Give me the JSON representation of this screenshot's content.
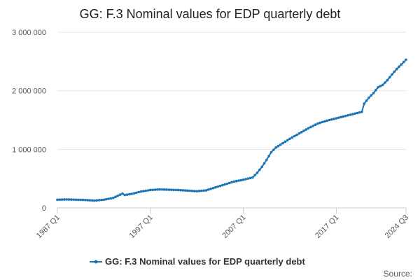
{
  "chart_data": {
    "type": "line",
    "title": "GG: F.3 Nominal values for EDP quarterly debt",
    "xlabel": "",
    "ylabel": "",
    "x_tick_labels": [
      "1987 Q1",
      "1997 Q1",
      "2007 Q1",
      "2017 Q1",
      "2024 Q3"
    ],
    "y_tick_labels": [
      "0",
      "1 000 000",
      "2 000 000",
      "3 000 000"
    ],
    "ylim": [
      0,
      3000000
    ],
    "xlim": [
      "1987 Q1",
      "2024 Q3"
    ],
    "grid": "horizontal",
    "legend_position": "bottom",
    "source_label": "Source:",
    "colors": {
      "series": "#1b74b5",
      "grid": "#e6e6e6",
      "axis": "#cccccc",
      "text": "#222222"
    },
    "series": [
      {
        "name": "GG: F.3 Nominal values for EDP quarterly debt",
        "points": [
          [
            "1987 Q1",
            140000
          ],
          [
            "1988 Q1",
            145000
          ],
          [
            "1989 Q1",
            140000
          ],
          [
            "1990 Q1",
            135000
          ],
          [
            "1991 Q1",
            125000
          ],
          [
            "1992 Q1",
            140000
          ],
          [
            "1993 Q1",
            170000
          ],
          [
            "1994 Q1",
            245000
          ],
          [
            "1994 Q2",
            220000
          ],
          [
            "1995 Q1",
            240000
          ],
          [
            "1996 Q1",
            280000
          ],
          [
            "1997 Q1",
            305000
          ],
          [
            "1998 Q1",
            315000
          ],
          [
            "1999 Q1",
            310000
          ],
          [
            "2000 Q1",
            305000
          ],
          [
            "2001 Q1",
            295000
          ],
          [
            "2002 Q1",
            285000
          ],
          [
            "2003 Q1",
            300000
          ],
          [
            "2004 Q1",
            350000
          ],
          [
            "2005 Q1",
            400000
          ],
          [
            "2006 Q1",
            450000
          ],
          [
            "2007 Q1",
            480000
          ],
          [
            "2008 Q1",
            520000
          ],
          [
            "2008 Q3",
            600000
          ],
          [
            "2009 Q1",
            700000
          ],
          [
            "2009 Q3",
            820000
          ],
          [
            "2010 Q1",
            950000
          ],
          [
            "2010 Q3",
            1030000
          ],
          [
            "2011 Q1",
            1080000
          ],
          [
            "2012 Q1",
            1180000
          ],
          [
            "2013 Q1",
            1270000
          ],
          [
            "2014 Q1",
            1360000
          ],
          [
            "2015 Q1",
            1440000
          ],
          [
            "2016 Q1",
            1490000
          ],
          [
            "2017 Q1",
            1530000
          ],
          [
            "2018 Q1",
            1570000
          ],
          [
            "2019 Q1",
            1610000
          ],
          [
            "2019 Q4",
            1640000
          ],
          [
            "2020 Q1",
            1780000
          ],
          [
            "2020 Q3",
            1880000
          ],
          [
            "2021 Q1",
            1960000
          ],
          [
            "2021 Q3",
            2060000
          ],
          [
            "2022 Q1",
            2100000
          ],
          [
            "2022 Q3",
            2180000
          ],
          [
            "2023 Q1",
            2280000
          ],
          [
            "2023 Q3",
            2370000
          ],
          [
            "2024 Q1",
            2450000
          ],
          [
            "2024 Q3",
            2530000
          ]
        ]
      }
    ]
  }
}
